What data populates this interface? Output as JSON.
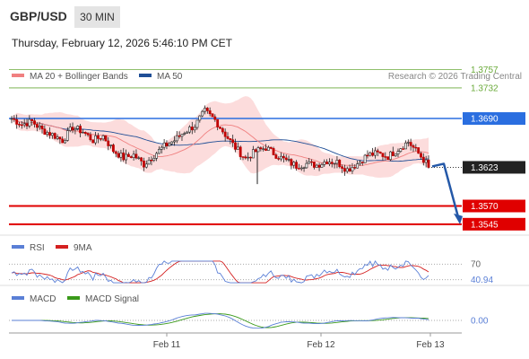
{
  "header": {
    "symbol": "GBP/USD",
    "timeframe": "30 MIN",
    "datetime": "Thursday, February 12, 2026 5:46:10 PM CET",
    "research": "Research © 2026 Trading Central"
  },
  "legend": {
    "main": [
      {
        "label": "MA 20 + Bollinger Bands",
        "color": "#f08080"
      },
      {
        "label": "MA 50",
        "color": "#1f4e96"
      }
    ],
    "rsi": [
      {
        "label": "RSI",
        "color": "#5a7fd6"
      },
      {
        "label": "9MA",
        "color": "#d42020"
      }
    ],
    "macd": [
      {
        "label": "MACD",
        "color": "#5a7fd6"
      },
      {
        "label": "MACD Signal",
        "color": "#3a9a1a"
      }
    ]
  },
  "chart_data": {
    "type": "candlestick",
    "ylim": [
      1.353,
      1.3775
    ],
    "x_labels": [
      "Feb 11",
      "Feb 12",
      "Feb 13"
    ],
    "current_price": 1.3623,
    "levels": [
      {
        "value": 1.3757,
        "label": "1.3757",
        "kind": "target-green",
        "color": "#6aaa3a"
      },
      {
        "value": 1.3732,
        "label": "1.3732",
        "kind": "target-green",
        "color": "#6aaa3a"
      },
      {
        "value": 1.369,
        "label": "1.3690",
        "kind": "pivot",
        "color": "#2a6ee0"
      },
      {
        "value": 1.357,
        "label": "1.3570",
        "kind": "support",
        "color": "#e00000"
      },
      {
        "value": 1.3545,
        "label": "1.3545",
        "kind": "support",
        "color": "#e00000"
      }
    ],
    "anchors": [
      1.369,
      1.3682,
      1.3686,
      1.3674,
      1.3668,
      1.366,
      1.3678,
      1.3672,
      1.366,
      1.3666,
      1.3646,
      1.3636,
      1.364,
      1.3627,
      1.364,
      1.3652,
      1.366,
      1.3672,
      1.368,
      1.37,
      1.3688,
      1.3668,
      1.365,
      1.3635,
      1.3645,
      1.365,
      1.364,
      1.3632,
      1.3625,
      1.3628,
      1.3626,
      1.3632,
      1.363,
      1.362,
      1.3628,
      1.364,
      1.3642,
      1.3638,
      1.3648,
      1.3658,
      1.3642,
      1.3625
    ],
    "rsi": {
      "levels": [
        "70",
        "30"
      ],
      "value": "40.94"
    },
    "macd": {
      "value": "0.00"
    }
  }
}
